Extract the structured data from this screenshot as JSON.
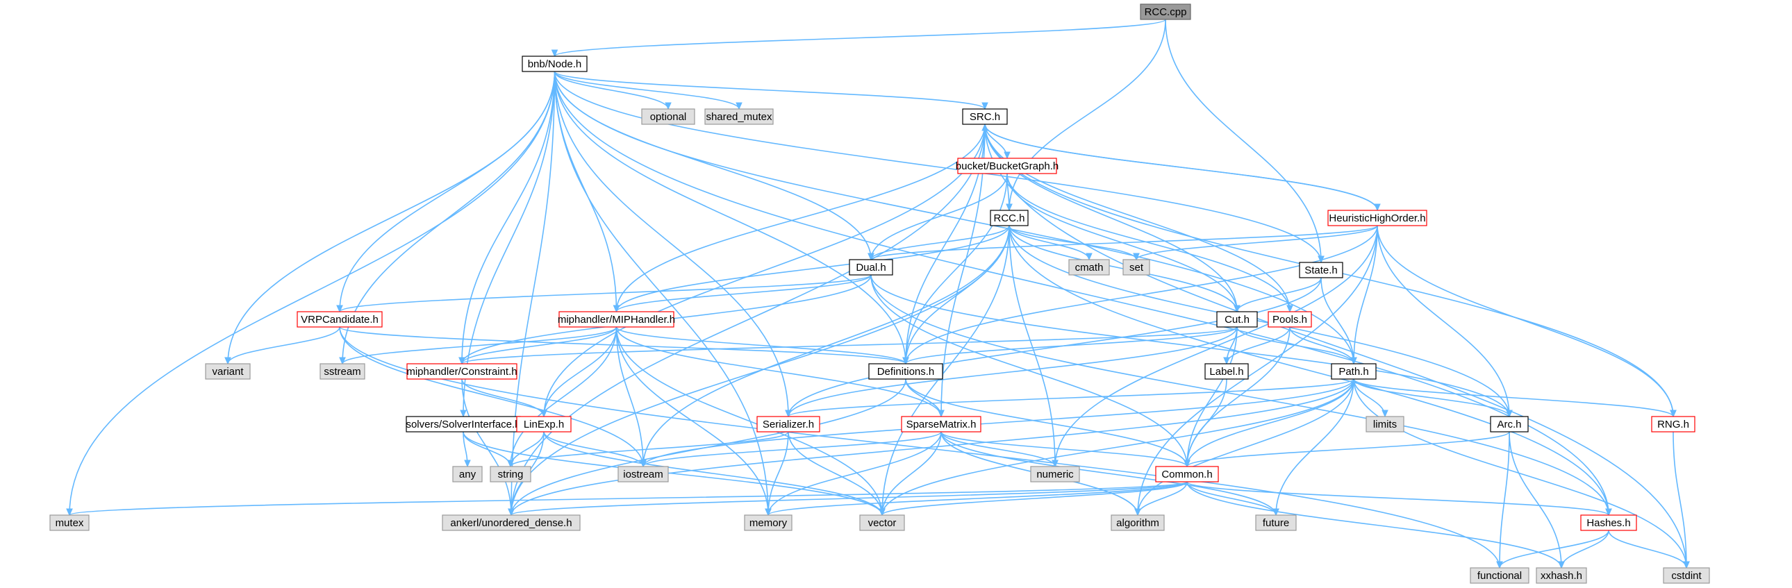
{
  "colors": {
    "edge": "#63b8ff",
    "root_fill": "#999999",
    "root_stroke": "#666666",
    "header_fill": "#ffffff",
    "header_stroke": "#000000",
    "expandable_stroke": "#ff0000",
    "system_fill": "#e0e0e0",
    "system_stroke": "#999999"
  },
  "nodes": [
    {
      "id": "rcc_cpp",
      "label": "RCC.cpp",
      "kind": "root"
    },
    {
      "id": "bnb_node",
      "label": "bnb/Node.h",
      "kind": "header"
    },
    {
      "id": "optional",
      "label": "optional",
      "kind": "system"
    },
    {
      "id": "shared_mutex",
      "label": "shared_mutex",
      "kind": "system"
    },
    {
      "id": "src_h",
      "label": "SRC.h",
      "kind": "header"
    },
    {
      "id": "bucket_graph",
      "label": "bucket/BucketGraph.h",
      "kind": "expandable"
    },
    {
      "id": "heuristic",
      "label": "HeuristicHighOrder.h",
      "kind": "expandable"
    },
    {
      "id": "rcc_h",
      "label": "RCC.h",
      "kind": "header"
    },
    {
      "id": "cmath",
      "label": "cmath",
      "kind": "system"
    },
    {
      "id": "set",
      "label": "set",
      "kind": "system"
    },
    {
      "id": "state_h",
      "label": "State.h",
      "kind": "header"
    },
    {
      "id": "dual_h",
      "label": "Dual.h",
      "kind": "header"
    },
    {
      "id": "vrp_candidate",
      "label": "VRPCandidate.h",
      "kind": "expandable"
    },
    {
      "id": "mip_handler",
      "label": "miphandler/MIPHandler.h",
      "kind": "expandable"
    },
    {
      "id": "pools_h",
      "label": "Pools.h",
      "kind": "expandable"
    },
    {
      "id": "cut_h",
      "label": "Cut.h",
      "kind": "header"
    },
    {
      "id": "variant",
      "label": "variant",
      "kind": "system"
    },
    {
      "id": "sstream",
      "label": "sstream",
      "kind": "system"
    },
    {
      "id": "constraint",
      "label": "miphandler/Constraint.h",
      "kind": "expandable"
    },
    {
      "id": "definitions",
      "label": "Definitions.h",
      "kind": "header"
    },
    {
      "id": "label_h",
      "label": "Label.h",
      "kind": "header"
    },
    {
      "id": "path_h",
      "label": "Path.h",
      "kind": "header"
    },
    {
      "id": "solver_iface",
      "label": "solvers/SolverInterface.h",
      "kind": "header"
    },
    {
      "id": "linexp",
      "label": "LinExp.h",
      "kind": "expandable"
    },
    {
      "id": "serializer",
      "label": "Serializer.h",
      "kind": "expandable"
    },
    {
      "id": "sparse_matrix",
      "label": "SparseMatrix.h",
      "kind": "expandable"
    },
    {
      "id": "limits",
      "label": "limits",
      "kind": "system"
    },
    {
      "id": "arc_h",
      "label": "Arc.h",
      "kind": "header"
    },
    {
      "id": "rng_h",
      "label": "RNG.h",
      "kind": "expandable"
    },
    {
      "id": "any",
      "label": "any",
      "kind": "system"
    },
    {
      "id": "string",
      "label": "string",
      "kind": "system"
    },
    {
      "id": "iostream",
      "label": "iostream",
      "kind": "system"
    },
    {
      "id": "numeric",
      "label": "numeric",
      "kind": "system"
    },
    {
      "id": "common_h",
      "label": "Common.h",
      "kind": "expandable"
    },
    {
      "id": "mutex",
      "label": "mutex",
      "kind": "system"
    },
    {
      "id": "ankerl",
      "label": "ankerl/unordered_dense.h",
      "kind": "system"
    },
    {
      "id": "memory",
      "label": "memory",
      "kind": "system"
    },
    {
      "id": "vector",
      "label": "vector",
      "kind": "system"
    },
    {
      "id": "algorithm",
      "label": "algorithm",
      "kind": "system"
    },
    {
      "id": "future",
      "label": "future",
      "kind": "system"
    },
    {
      "id": "hashes_h",
      "label": "Hashes.h",
      "kind": "expandable"
    },
    {
      "id": "functional",
      "label": "functional",
      "kind": "system"
    },
    {
      "id": "xxhash",
      "label": "xxhash.h",
      "kind": "system"
    },
    {
      "id": "cstdint",
      "label": "cstdint",
      "kind": "system"
    }
  ],
  "edges": [
    [
      "rcc_cpp",
      "bnb_node"
    ],
    [
      "rcc_cpp",
      "rcc_h"
    ],
    [
      "rcc_cpp",
      "state_h"
    ],
    [
      "bnb_node",
      "optional"
    ],
    [
      "bnb_node",
      "shared_mutex"
    ],
    [
      "bnb_node",
      "src_h"
    ],
    [
      "bnb_node",
      "dual_h"
    ],
    [
      "bnb_node",
      "vrp_candidate"
    ],
    [
      "bnb_node",
      "mip_handler"
    ],
    [
      "bnb_node",
      "constraint"
    ],
    [
      "bnb_node",
      "definitions"
    ],
    [
      "bnb_node",
      "solver_iface"
    ],
    [
      "bnb_node",
      "serializer"
    ],
    [
      "bnb_node",
      "variant"
    ],
    [
      "bnb_node",
      "sstream"
    ],
    [
      "bnb_node",
      "mutex"
    ],
    [
      "bnb_node",
      "ankerl"
    ],
    [
      "bnb_node",
      "memory"
    ],
    [
      "bnb_node",
      "hashes_h"
    ],
    [
      "bnb_node",
      "path_h"
    ],
    [
      "bnb_node",
      "state_h"
    ],
    [
      "src_h",
      "bucket_graph"
    ],
    [
      "src_h",
      "heuristic"
    ],
    [
      "src_h",
      "definitions"
    ],
    [
      "src_h",
      "cut_h"
    ],
    [
      "src_h",
      "mip_handler"
    ],
    [
      "src_h",
      "linexp"
    ],
    [
      "src_h",
      "sparse_matrix"
    ],
    [
      "src_h",
      "ankerl"
    ],
    [
      "src_h",
      "rng_h"
    ],
    [
      "src_h",
      "cstdint"
    ],
    [
      "src_h",
      "pools_h"
    ],
    [
      "heuristic",
      "src_h"
    ],
    [
      "heuristic",
      "dual_h"
    ],
    [
      "heuristic",
      "set"
    ],
    [
      "heuristic",
      "path_h"
    ],
    [
      "heuristic",
      "definitions"
    ],
    [
      "heuristic",
      "arc_h"
    ],
    [
      "heuristic",
      "rng_h"
    ],
    [
      "heuristic",
      "algorithm"
    ],
    [
      "heuristic",
      "numeric"
    ],
    [
      "bucket_graph",
      "rcc_h"
    ],
    [
      "bucket_graph",
      "dual_h"
    ],
    [
      "bucket_graph",
      "definitions"
    ],
    [
      "bucket_graph",
      "cut_h"
    ],
    [
      "bucket_graph",
      "pools_h"
    ],
    [
      "rcc_h",
      "dual_h"
    ],
    [
      "rcc_h",
      "cmath"
    ],
    [
      "rcc_h",
      "set"
    ],
    [
      "rcc_h",
      "mip_handler"
    ],
    [
      "rcc_h",
      "definitions"
    ],
    [
      "rcc_h",
      "iostream"
    ],
    [
      "rcc_h",
      "numeric"
    ],
    [
      "rcc_h",
      "vector"
    ],
    [
      "rcc_h",
      "ankerl"
    ],
    [
      "rcc_h",
      "hashes_h"
    ],
    [
      "rcc_h",
      "cut_h"
    ],
    [
      "rcc_h",
      "arc_h"
    ],
    [
      "state_h",
      "cut_h"
    ],
    [
      "state_h",
      "path_h"
    ],
    [
      "state_h",
      "serializer"
    ],
    [
      "dual_h",
      "vrp_candidate"
    ],
    [
      "dual_h",
      "mip_handler"
    ],
    [
      "dual_h",
      "constraint"
    ],
    [
      "dual_h",
      "common_h"
    ],
    [
      "dual_h",
      "arc_h"
    ],
    [
      "dual_h",
      "hashes_h"
    ],
    [
      "vrp_candidate",
      "variant"
    ],
    [
      "vrp_candidate",
      "definitions"
    ],
    [
      "vrp_candidate",
      "iostream"
    ],
    [
      "vrp_candidate",
      "functional"
    ],
    [
      "mip_handler",
      "constraint"
    ],
    [
      "mip_handler",
      "definitions"
    ],
    [
      "mip_handler",
      "linexp"
    ],
    [
      "mip_handler",
      "sparse_matrix"
    ],
    [
      "mip_handler",
      "sstream"
    ],
    [
      "mip_handler",
      "string"
    ],
    [
      "mip_handler",
      "iostream"
    ],
    [
      "mip_handler",
      "memory"
    ],
    [
      "mip_handler",
      "vector"
    ],
    [
      "pools_h",
      "label_h"
    ],
    [
      "pools_h",
      "path_h"
    ],
    [
      "pools_h",
      "common_h"
    ],
    [
      "cut_h",
      "definitions"
    ],
    [
      "cut_h",
      "label_h"
    ],
    [
      "cut_h",
      "path_h"
    ],
    [
      "cut_h",
      "constraint"
    ],
    [
      "cut_h",
      "common_h"
    ],
    [
      "cut_h",
      "serializer"
    ],
    [
      "constraint",
      "linexp"
    ],
    [
      "constraint",
      "ankerl"
    ],
    [
      "definitions",
      "sparse_matrix"
    ],
    [
      "definitions",
      "common_h"
    ],
    [
      "definitions",
      "ankerl"
    ],
    [
      "label_h",
      "common_h"
    ],
    [
      "path_h",
      "serializer"
    ],
    [
      "path_h",
      "limits"
    ],
    [
      "path_h",
      "arc_h"
    ],
    [
      "path_h",
      "rng_h"
    ],
    [
      "path_h",
      "common_h"
    ],
    [
      "path_h",
      "vector"
    ],
    [
      "path_h",
      "algorithm"
    ],
    [
      "path_h",
      "future"
    ],
    [
      "path_h",
      "cstdint"
    ],
    [
      "path_h",
      "iostream"
    ],
    [
      "path_h",
      "ankerl"
    ],
    [
      "solver_iface",
      "any"
    ],
    [
      "solver_iface",
      "string"
    ],
    [
      "solver_iface",
      "vector"
    ],
    [
      "linexp",
      "string"
    ],
    [
      "linexp",
      "iostream"
    ],
    [
      "linexp",
      "ankerl"
    ],
    [
      "linexp",
      "vector"
    ],
    [
      "serializer",
      "string"
    ],
    [
      "serializer",
      "memory"
    ],
    [
      "serializer",
      "vector"
    ],
    [
      "sparse_matrix",
      "iostream"
    ],
    [
      "sparse_matrix",
      "numeric"
    ],
    [
      "sparse_matrix",
      "common_h"
    ],
    [
      "sparse_matrix",
      "vector"
    ],
    [
      "sparse_matrix",
      "algorithm"
    ],
    [
      "sparse_matrix",
      "future"
    ],
    [
      "sparse_matrix",
      "memory"
    ],
    [
      "arc_h",
      "common_h"
    ],
    [
      "arc_h",
      "functional"
    ],
    [
      "arc_h",
      "xxhash"
    ],
    [
      "rng_h",
      "cstdint"
    ],
    [
      "common_h",
      "mutex"
    ],
    [
      "common_h",
      "ankerl"
    ],
    [
      "common_h",
      "memory"
    ],
    [
      "common_h",
      "vector"
    ],
    [
      "common_h",
      "algorithm"
    ],
    [
      "common_h",
      "future"
    ],
    [
      "common_h",
      "hashes_h"
    ],
    [
      "common_h",
      "xxhash"
    ],
    [
      "hashes_h",
      "functional"
    ],
    [
      "hashes_h",
      "xxhash"
    ],
    [
      "hashes_h",
      "cstdint"
    ]
  ]
}
